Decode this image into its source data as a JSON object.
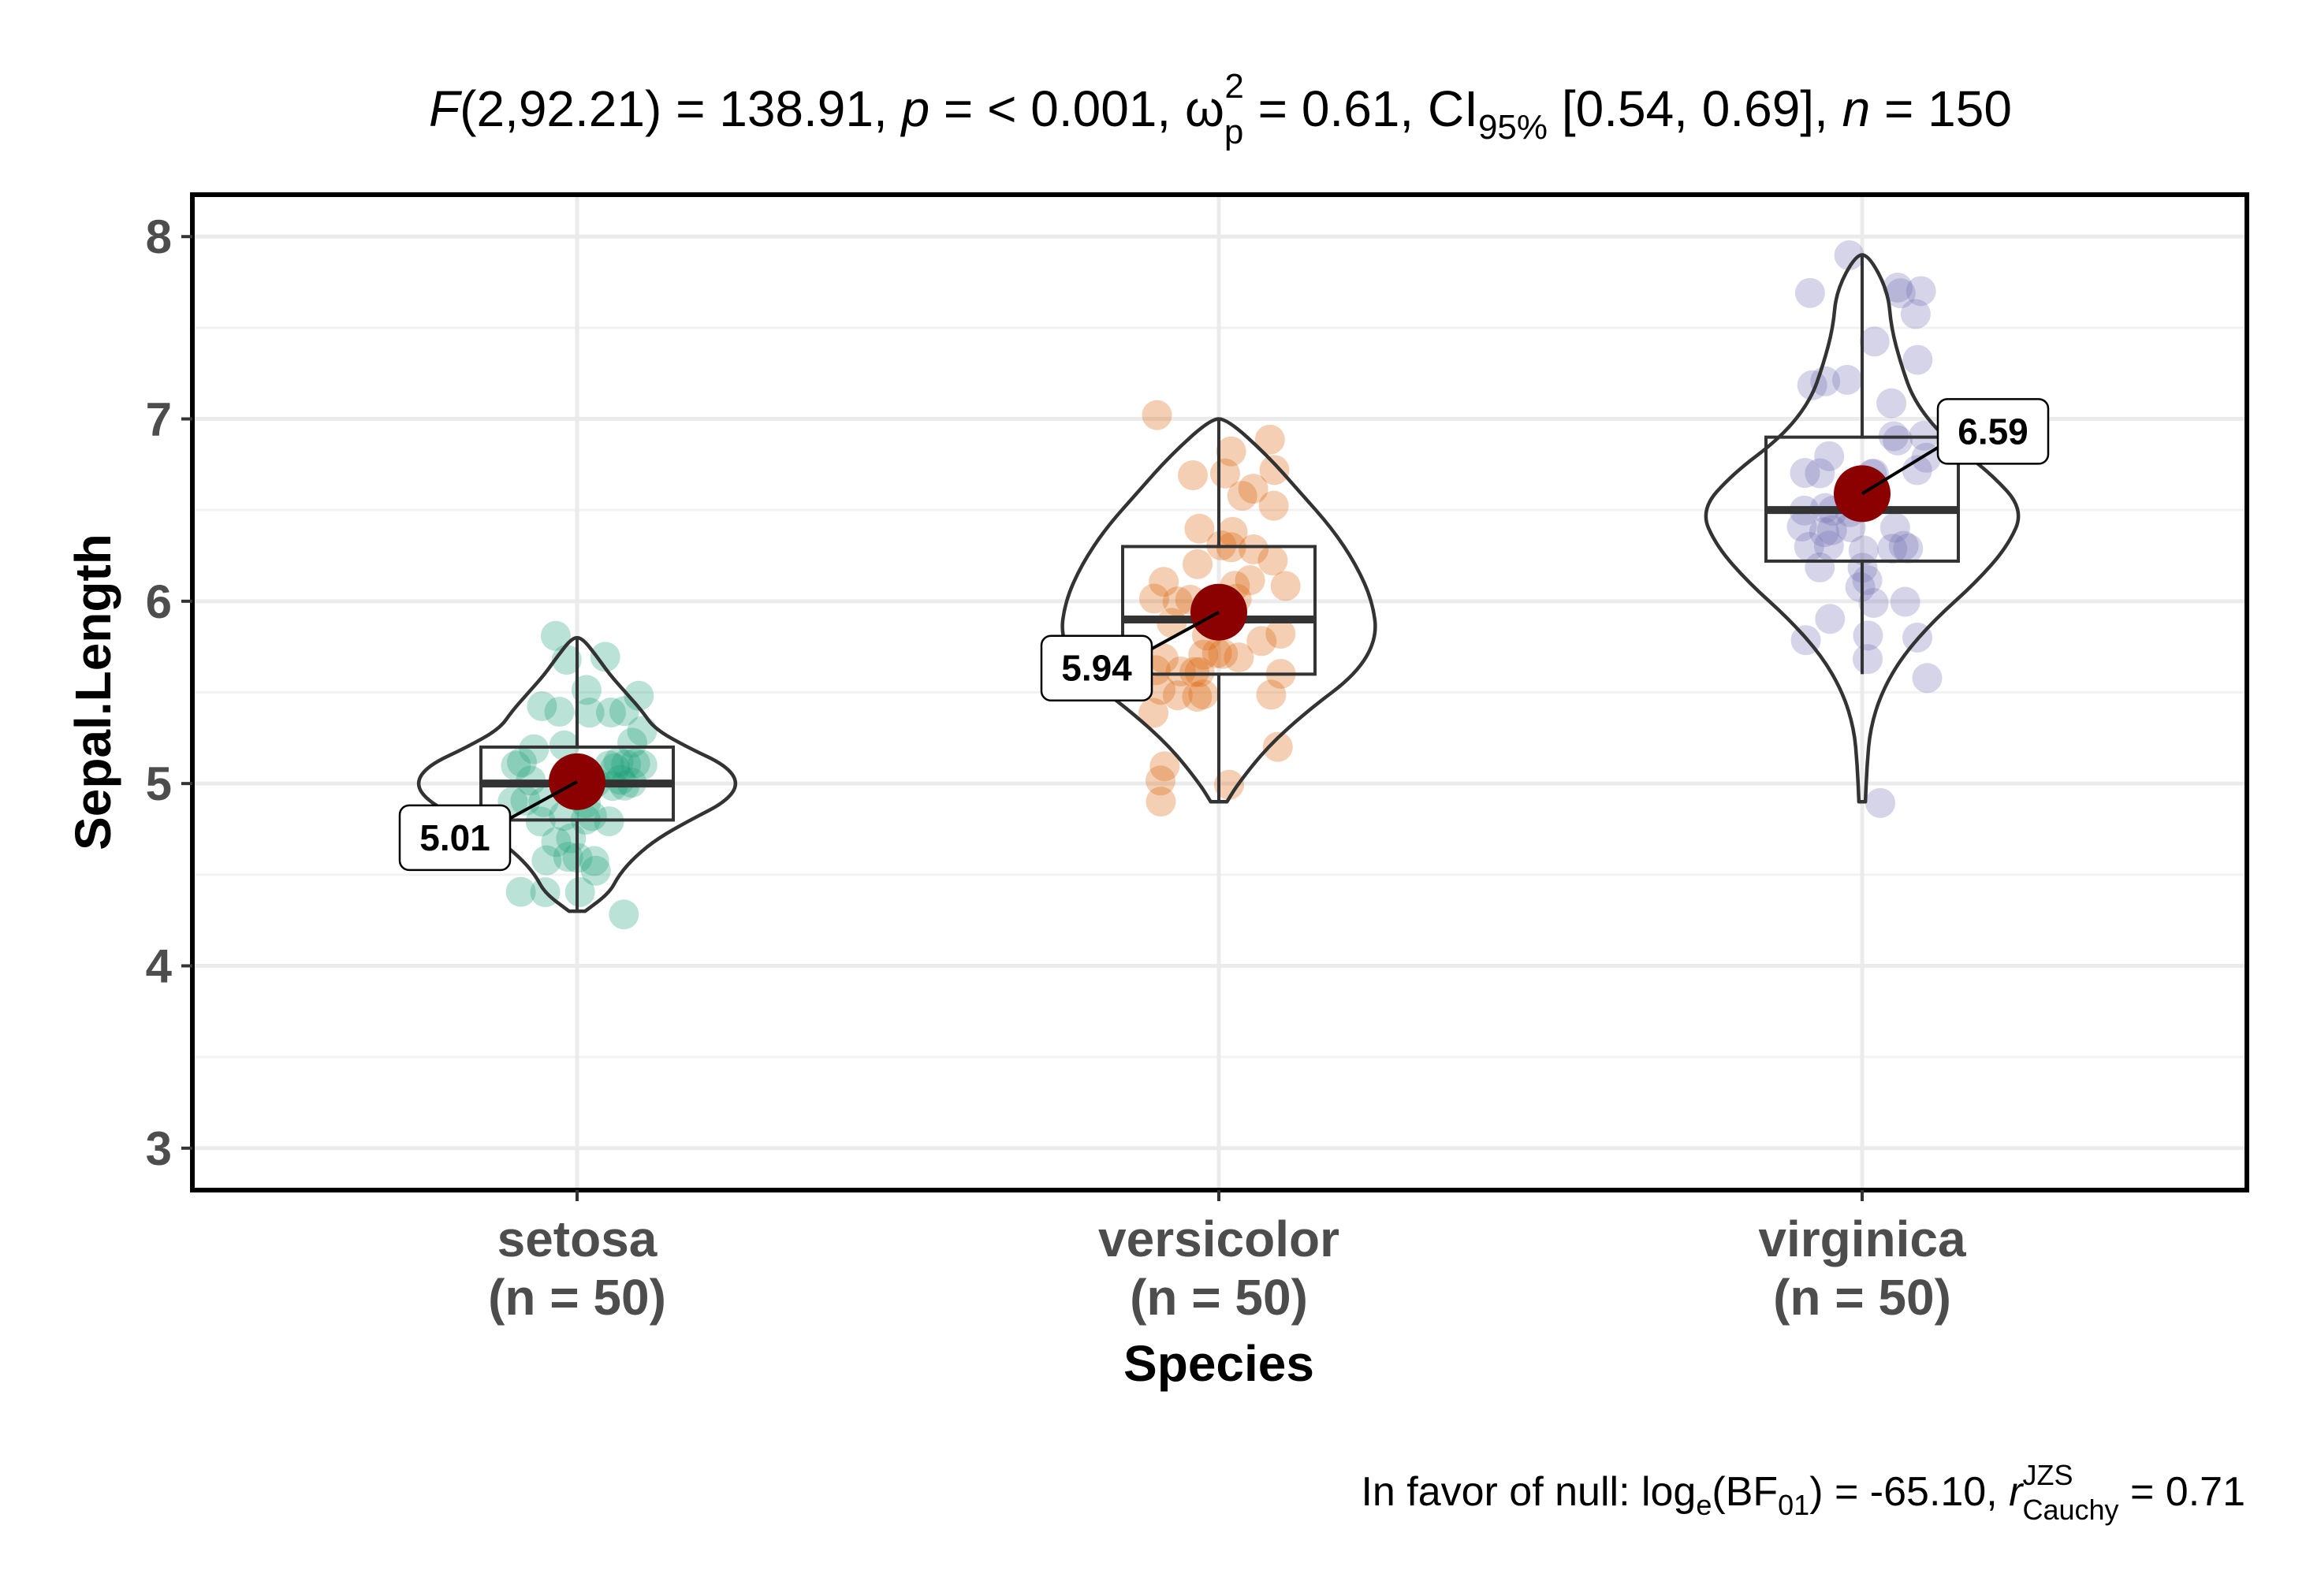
{
  "chart_data": {
    "type": "violin-box-scatter",
    "subtitle": {
      "stat_label": "F",
      "stat_df": "(2,92.21)",
      "stat_value": " = 138.91, ",
      "p_label": "p",
      "p_value": " = < 0.001, ",
      "effect_symbol": "ω",
      "effect_sub": "p",
      "effect_sup": "2",
      "effect_value": " = 0.61, CI",
      "ci_sub": "95%",
      "ci_value": " [0.54, 0.69], ",
      "n_label": "n",
      "n_value": " = 150"
    },
    "caption": {
      "prefix": "In favor of null: log",
      "log_sub": "e",
      "bf_open": "(BF",
      "bf_sub": "01",
      "bf_close": ") = -65.10, ",
      "r_label": "r",
      "r_sup": "JZS",
      "r_sub": "Cauchy",
      "r_value": " = 0.71"
    },
    "xlabel": "Species",
    "ylabel": "Sepal.Length",
    "ylim": [
      2.77,
      8.23
    ],
    "yticks": [
      3,
      4,
      5,
      6,
      7,
      8
    ],
    "grid": true,
    "groups": [
      {
        "name": "setosa",
        "n_label": "(n = 50)",
        "color": "#1b9e77",
        "mean": 5.01,
        "mean_label": "5.01",
        "box": {
          "q1": 4.8,
          "median": 5.0,
          "q3": 5.2,
          "min": 4.3,
          "max": 5.8
        },
        "violin": [
          [
            4.3,
            0.05
          ],
          [
            4.4,
            0.2
          ],
          [
            4.5,
            0.26
          ],
          [
            4.6,
            0.36
          ],
          [
            4.7,
            0.5
          ],
          [
            4.8,
            0.7
          ],
          [
            4.9,
            0.92
          ],
          [
            5.0,
            1.0
          ],
          [
            5.1,
            0.92
          ],
          [
            5.2,
            0.68
          ],
          [
            5.3,
            0.48
          ],
          [
            5.4,
            0.4
          ],
          [
            5.5,
            0.3
          ],
          [
            5.6,
            0.2
          ],
          [
            5.7,
            0.12
          ],
          [
            5.8,
            0.03
          ]
        ],
        "points": [
          5.1,
          4.9,
          4.7,
          4.6,
          5.0,
          5.4,
          4.6,
          5.0,
          4.4,
          4.9,
          5.4,
          4.8,
          4.8,
          4.3,
          5.8,
          5.7,
          5.4,
          5.1,
          5.7,
          5.1,
          5.4,
          5.1,
          4.6,
          5.1,
          4.8,
          5.0,
          5.0,
          5.2,
          5.2,
          4.7,
          4.8,
          5.4,
          5.2,
          5.5,
          4.9,
          5.0,
          5.5,
          4.9,
          4.4,
          5.1,
          5.0,
          4.5,
          4.4,
          5.0,
          5.1,
          4.8,
          5.1,
          4.6,
          5.3,
          5.0
        ]
      },
      {
        "name": "versicolor",
        "n_label": "(n = 50)",
        "color": "#d95f02",
        "mean": 5.94,
        "mean_label": "5.94",
        "box": {
          "q1": 5.6,
          "median": 5.9,
          "q3": 6.3,
          "min": 4.9,
          "max": 7.0
        },
        "violin": [
          [
            4.9,
            0.05
          ],
          [
            5.0,
            0.12
          ],
          [
            5.2,
            0.3
          ],
          [
            5.4,
            0.55
          ],
          [
            5.6,
            0.85
          ],
          [
            5.8,
            0.98
          ],
          [
            6.0,
            0.95
          ],
          [
            6.2,
            0.85
          ],
          [
            6.4,
            0.7
          ],
          [
            6.6,
            0.5
          ],
          [
            6.8,
            0.3
          ],
          [
            7.0,
            0.05
          ]
        ],
        "points": [
          7.0,
          6.4,
          6.9,
          5.5,
          6.5,
          5.7,
          6.3,
          4.9,
          6.6,
          5.2,
          5.0,
          5.9,
          6.0,
          6.1,
          5.6,
          6.7,
          5.6,
          5.8,
          6.2,
          5.6,
          5.9,
          6.1,
          6.3,
          6.1,
          6.4,
          6.6,
          6.8,
          6.7,
          6.0,
          5.7,
          5.5,
          5.5,
          5.8,
          6.0,
          5.4,
          6.0,
          6.7,
          6.3,
          5.6,
          5.5,
          5.5,
          6.1,
          5.8,
          5.0,
          5.6,
          5.7,
          5.7,
          6.2,
          5.1,
          5.7
        ]
      },
      {
        "name": "virginica",
        "n_label": "(n = 50)",
        "color": "#7570b3",
        "mean": 6.59,
        "mean_label": "6.59",
        "box": {
          "q1": 6.22,
          "median": 6.5,
          "q3": 6.9,
          "min": 5.6,
          "max": 7.9
        },
        "violin": [
          [
            4.9,
            0.02
          ],
          [
            5.1,
            0.03
          ],
          [
            5.3,
            0.05
          ],
          [
            5.5,
            0.12
          ],
          [
            5.7,
            0.25
          ],
          [
            5.9,
            0.45
          ],
          [
            6.1,
            0.7
          ],
          [
            6.3,
            0.9
          ],
          [
            6.5,
            1.0
          ],
          [
            6.7,
            0.8
          ],
          [
            6.9,
            0.5
          ],
          [
            7.1,
            0.32
          ],
          [
            7.3,
            0.24
          ],
          [
            7.5,
            0.18
          ],
          [
            7.7,
            0.16
          ],
          [
            7.9,
            0.04
          ]
        ],
        "points": [
          6.3,
          5.8,
          7.1,
          6.3,
          6.5,
          7.6,
          4.9,
          7.3,
          6.7,
          7.2,
          6.5,
          6.4,
          6.8,
          5.7,
          5.8,
          6.4,
          6.5,
          7.7,
          7.7,
          6.0,
          6.9,
          5.6,
          7.7,
          6.3,
          6.7,
          7.2,
          6.2,
          6.1,
          6.4,
          7.2,
          7.4,
          7.9,
          6.4,
          6.3,
          6.1,
          7.7,
          6.3,
          6.4,
          6.0,
          6.9,
          6.7,
          6.9,
          5.8,
          6.8,
          6.7,
          6.7,
          6.3,
          6.5,
          6.2,
          5.9
        ]
      }
    ],
    "mean_point_color": "#8b0000"
  }
}
